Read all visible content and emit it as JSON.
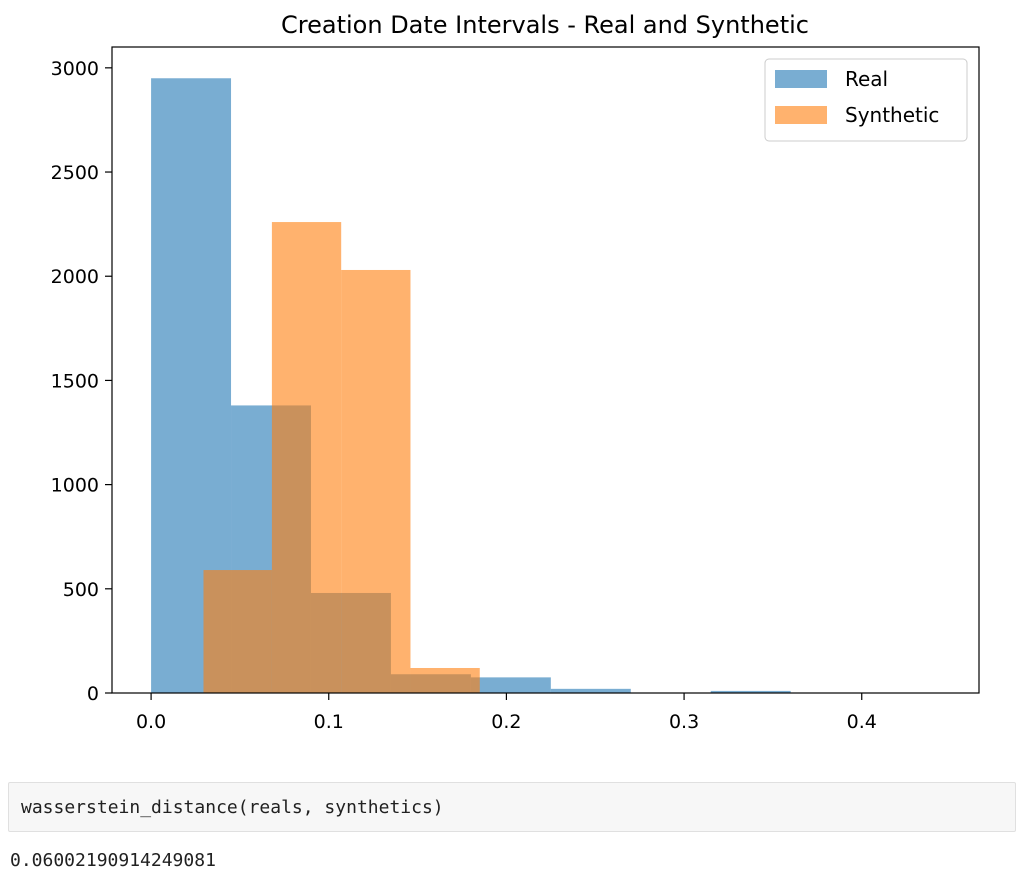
{
  "chart_data": {
    "type": "bar",
    "title": "Creation Date Intervals - Real and Synthetic",
    "xlabel": "",
    "ylabel": "",
    "xlim": [
      -0.022,
      0.466
    ],
    "ylim": [
      0,
      3100
    ],
    "xticks": [
      0.0,
      0.1,
      0.2,
      0.3,
      0.4
    ],
    "xtick_labels": [
      "0.0",
      "0.1",
      "0.2",
      "0.3",
      "0.4"
    ],
    "yticks": [
      0,
      500,
      1000,
      1500,
      2000,
      2500,
      3000
    ],
    "ytick_labels": [
      "0",
      "500",
      "1000",
      "1500",
      "2000",
      "2500",
      "3000"
    ],
    "legend_position": "top-right",
    "series": [
      {
        "name": "Real",
        "color": "#1f77b4",
        "alpha": 0.6,
        "bin_edges": [
          0.0,
          0.045,
          0.09,
          0.135,
          0.18,
          0.225,
          0.27,
          0.315,
          0.36,
          0.405,
          0.45
        ],
        "values": [
          2950,
          1380,
          480,
          90,
          75,
          20,
          0,
          10,
          0,
          0
        ]
      },
      {
        "name": "Synthetic",
        "color": "#ff7f0e",
        "alpha": 0.6,
        "bin_edges": [
          0.0295,
          0.068,
          0.107,
          0.146,
          0.185
        ],
        "values": [
          590,
          2260,
          2030,
          120
        ]
      }
    ]
  },
  "code_cell": {
    "source": "wasserstein_distance(reals, synthetics)"
  },
  "output": {
    "text": "0.06002190914249081"
  }
}
